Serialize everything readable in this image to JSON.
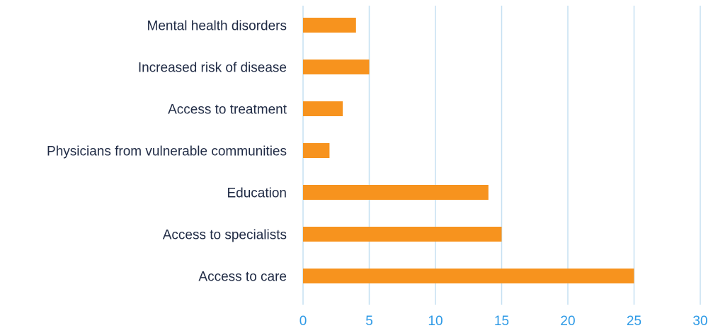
{
  "chart_data": {
    "type": "bar",
    "orientation": "horizontal",
    "categories": [
      "Mental health disorders",
      "Increased risk of disease",
      "Access to treatment",
      "Physicians from vulnerable communities",
      "Education",
      "Access to specialists",
      "Access to care"
    ],
    "values": [
      4,
      5,
      3,
      2,
      14,
      15,
      25
    ],
    "title": "",
    "xlabel": "",
    "ylabel": "",
    "xlim": [
      0,
      30
    ],
    "x_ticks": [
      0,
      5,
      10,
      15,
      20,
      25,
      30
    ],
    "x_tick_labels": [
      "0",
      "5",
      "10",
      "15",
      "20",
      "25",
      "30"
    ],
    "grid": "vertical",
    "legend": "none"
  },
  "colors": {
    "bar": "#F7931E",
    "grid": "#C5E0F2",
    "tick_label": "#2E9AE6",
    "category_label": "#1f2a44"
  }
}
